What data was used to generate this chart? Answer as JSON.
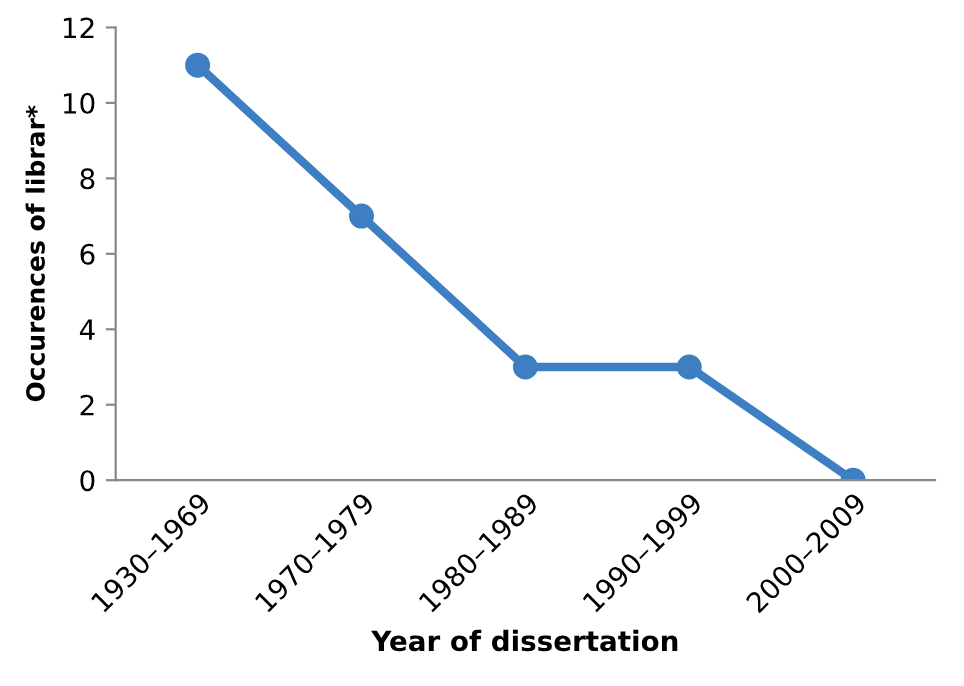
{
  "chart_data": {
    "type": "line",
    "xlabel": "Year of dissertation",
    "ylabel": "Occurences of librar*",
    "categories": [
      "1930–1969",
      "1970–1979",
      "1980–1989",
      "1990–1999",
      "2000–2009"
    ],
    "series": [
      {
        "color": "#3d7fc2",
        "values": [
          11,
          7,
          3,
          3,
          0
        ]
      }
    ],
    "ylim": [
      0,
      12
    ],
    "yticks": [
      0,
      2,
      4,
      6,
      8,
      10,
      12
    ],
    "grid": false,
    "marker": "circle",
    "line_style": "solid"
  }
}
